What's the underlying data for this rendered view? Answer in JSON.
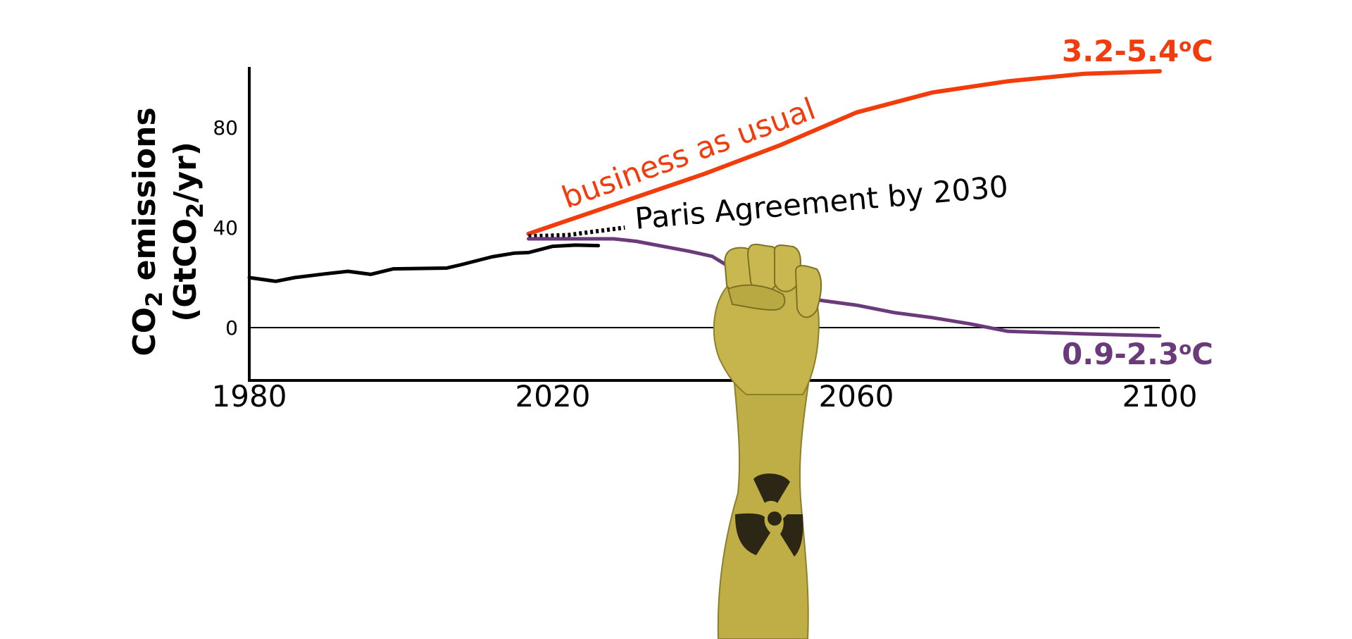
{
  "chart_data": {
    "type": "line",
    "ylabel_line1_main": "CO",
    "ylabel_line1_sub": "2",
    "ylabel_line1_rest": " emissions",
    "ylabel_line2_pre": "(GtCO",
    "ylabel_line2_sub": "2",
    "ylabel_line2_post": "/yr)",
    "xlim": [
      1980,
      2100
    ],
    "ylim": [
      -20,
      105
    ],
    "x_ticks": [
      {
        "value": 1980,
        "label": "1980"
      },
      {
        "value": 2020,
        "label": "2020"
      },
      {
        "value": 2060,
        "label": "2060"
      },
      {
        "value": 2100,
        "label": "2100"
      }
    ],
    "y_ticks": [
      {
        "value": 0,
        "label": "0"
      },
      {
        "value": 40,
        "label": "40"
      },
      {
        "value": 80,
        "label": "80"
      }
    ],
    "zero_line": true,
    "series": [
      {
        "id": "historical",
        "color": "#000000",
        "style": "solid",
        "points": [
          [
            1980,
            20
          ],
          [
            1983.5,
            18.5
          ],
          [
            1986,
            20
          ],
          [
            1990,
            21.5
          ],
          [
            1993,
            22.5
          ],
          [
            1996,
            21.3
          ],
          [
            1999,
            23.5
          ],
          [
            2006,
            23.8
          ],
          [
            2008,
            25.2
          ],
          [
            2012,
            28.3
          ],
          [
            2015,
            29.8
          ],
          [
            2016.8,
            30
          ],
          [
            2020,
            32.5
          ],
          [
            2023,
            33
          ],
          [
            2026,
            32.8
          ]
        ]
      },
      {
        "id": "business-as-usual",
        "name": "business as usual",
        "color": "#f23c0c",
        "style": "solid",
        "points": [
          [
            2016.8,
            37.5
          ],
          [
            2040,
            61.5
          ],
          [
            2050,
            73
          ],
          [
            2060,
            86
          ],
          [
            2070,
            94
          ],
          [
            2080,
            98.5
          ],
          [
            2090,
            101.5
          ],
          [
            2100,
            102.5
          ]
        ]
      },
      {
        "id": "paris-pledges",
        "name": "Paris Agreement by 2030",
        "color": "#000000",
        "style": "dotted",
        "points": [
          [
            2016.8,
            36.5
          ],
          [
            2022,
            37
          ],
          [
            2029.5,
            40
          ]
        ]
      },
      {
        "id": "mitigation",
        "color": "#6b3a7a",
        "style": "solid",
        "points": [
          [
            2016.8,
            35.5
          ],
          [
            2028,
            35.5
          ],
          [
            2031,
            34.5
          ],
          [
            2038,
            30.5
          ],
          [
            2041,
            28.5
          ],
          [
            2044,
            23
          ],
          [
            2050,
            16.5
          ],
          [
            2055,
            11
          ],
          [
            2060,
            9
          ],
          [
            2065,
            6
          ],
          [
            2070,
            4
          ],
          [
            2075,
            1.5
          ],
          [
            2080,
            -1.5
          ],
          [
            2090,
            -2.5
          ],
          [
            2100,
            -3.3
          ]
        ]
      }
    ],
    "annotations": [
      {
        "id": "bau-temp",
        "text": "3.2-5.4",
        "degree": "o",
        "unit": "C",
        "color": "#f23c0c"
      },
      {
        "id": "mitigation-temp",
        "text": "0.9-2.3",
        "degree": "o",
        "unit": "C",
        "color": "#6b3a7a"
      }
    ],
    "labels": {
      "bau": "business as usual",
      "paris": "Paris Agreement by 2030"
    },
    "decoration": {
      "image": "raised-fist-with-radiation-symbol-tattoo",
      "skin_color": "#bfae45",
      "tattoo_color": "#2b2714"
    }
  }
}
